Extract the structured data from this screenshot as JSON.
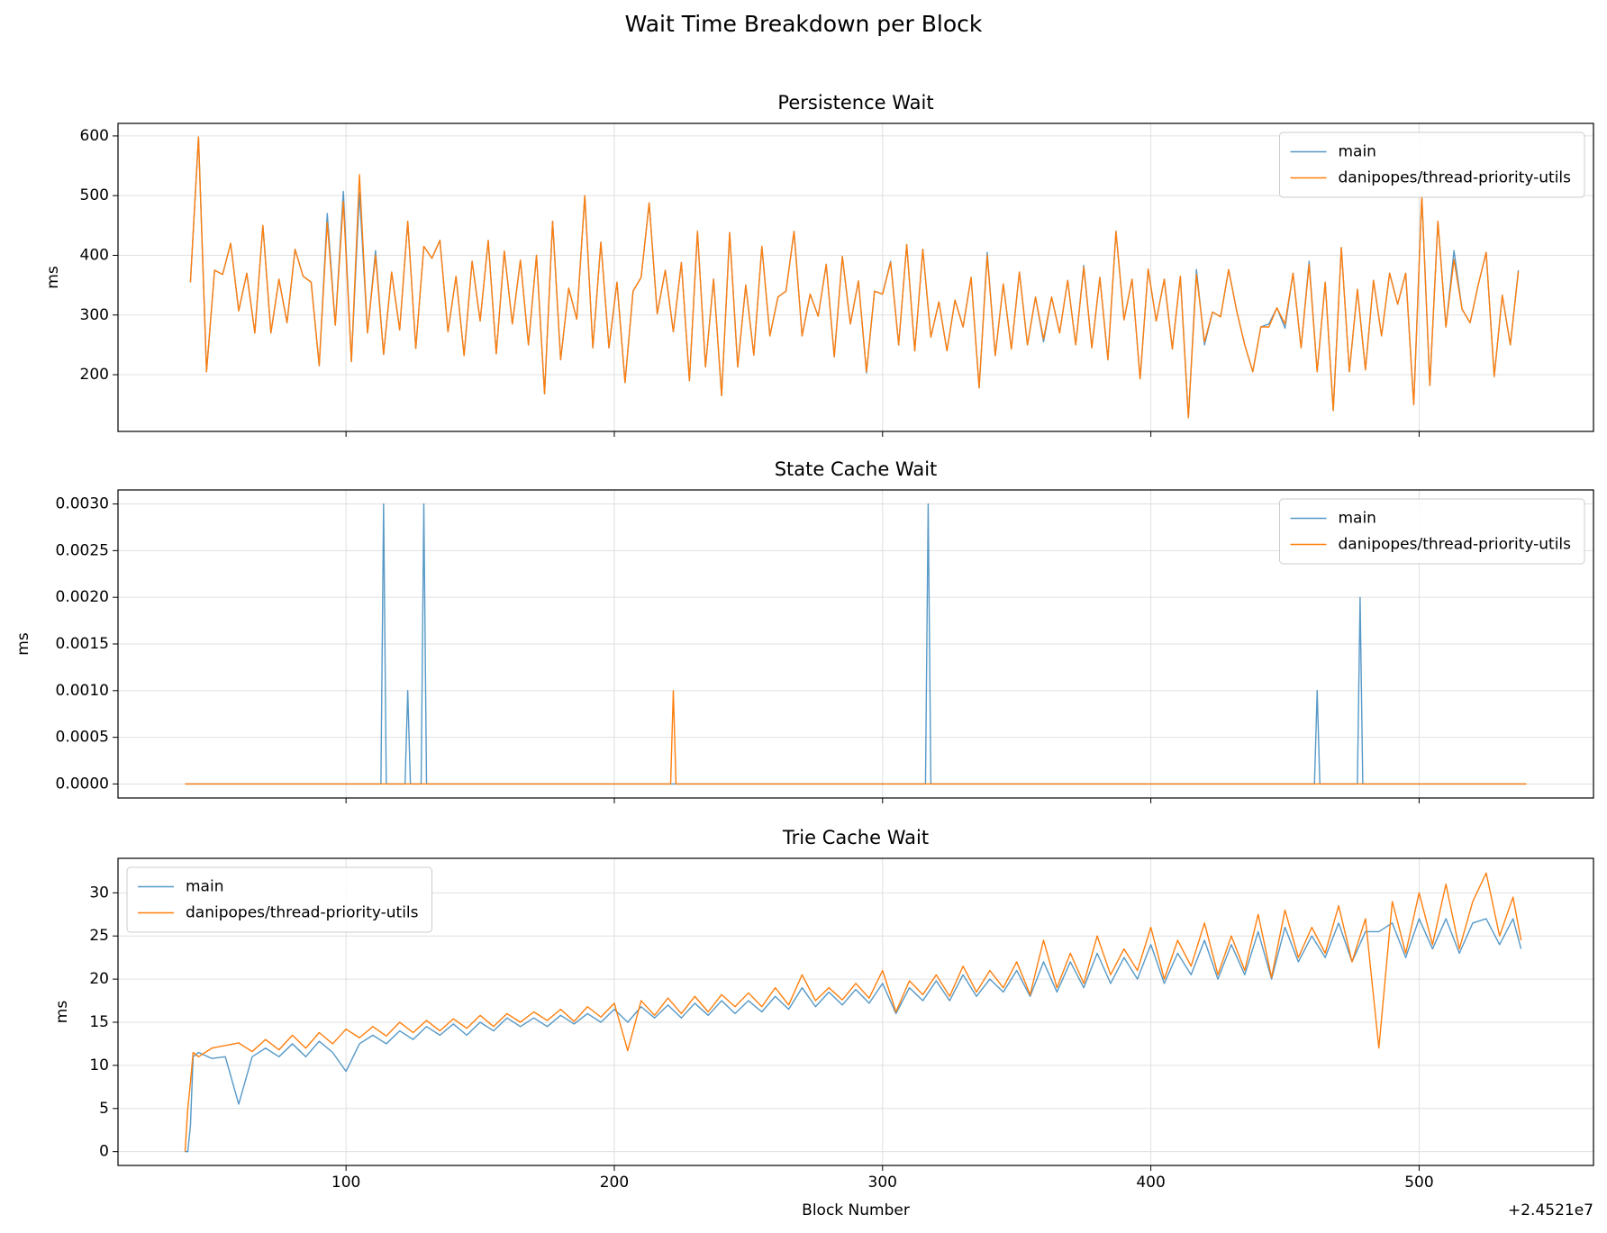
{
  "title": "Wait Time Breakdown per Block",
  "chart_data": [
    {
      "type": "line",
      "title": "Persistence Wait",
      "ylabel": "ms",
      "legend": "upper right",
      "grid": true,
      "show_xtick_labels": false,
      "xlim": [
        15,
        565
      ],
      "xticks": [
        100,
        200,
        300,
        400,
        500
      ],
      "ylim": [
        105,
        621
      ],
      "yticks": [
        200,
        300,
        400,
        500,
        600
      ],
      "x": [
        42,
        45,
        48,
        51,
        54,
        57,
        60,
        63,
        66,
        69,
        72,
        75,
        78,
        81,
        84,
        87,
        90,
        93,
        96,
        99,
        102,
        105,
        108,
        111,
        114,
        117,
        120,
        123,
        126,
        129,
        132,
        135,
        138,
        141,
        144,
        147,
        150,
        153,
        156,
        159,
        162,
        165,
        168,
        171,
        174,
        177,
        180,
        183,
        186,
        189,
        192,
        195,
        198,
        201,
        204,
        207,
        210,
        213,
        216,
        219,
        222,
        225,
        228,
        231,
        234,
        237,
        240,
        243,
        246,
        249,
        252,
        255,
        258,
        261,
        264,
        267,
        270,
        273,
        276,
        279,
        282,
        285,
        288,
        291,
        294,
        297,
        300,
        303,
        306,
        309,
        312,
        315,
        318,
        321,
        324,
        327,
        330,
        333,
        336,
        339,
        342,
        345,
        348,
        351,
        354,
        357,
        360,
        363,
        366,
        369,
        372,
        375,
        378,
        381,
        384,
        387,
        390,
        393,
        396,
        399,
        402,
        405,
        408,
        411,
        414,
        417,
        420,
        423,
        426,
        429,
        432,
        435,
        438,
        441,
        444,
        447,
        450,
        453,
        456,
        459,
        462,
        465,
        468,
        471,
        474,
        477,
        480,
        483,
        486,
        489,
        492,
        495,
        498,
        501,
        504,
        507,
        510,
        513,
        516,
        519,
        522,
        525,
        528,
        531,
        534,
        537
      ],
      "series": [
        {
          "name": "main",
          "color": "#1f77b4",
          "values": [
            355,
            598,
            205,
            375,
            368,
            420,
            307,
            370,
            270,
            450,
            270,
            360,
            287,
            410,
            365,
            355,
            215,
            470,
            283,
            507,
            222,
            505,
            270,
            408,
            234,
            372,
            275,
            457,
            244,
            415,
            395,
            425,
            272,
            365,
            232,
            390,
            290,
            425,
            235,
            407,
            285,
            392,
            250,
            400,
            168,
            457,
            225,
            345,
            293,
            500,
            245,
            422,
            245,
            355,
            187,
            340,
            363,
            488,
            302,
            375,
            272,
            388,
            190,
            440,
            213,
            360,
            165,
            438,
            213,
            350,
            233,
            415,
            265,
            330,
            340,
            440,
            265,
            335,
            298,
            385,
            230,
            398,
            285,
            357,
            203,
            340,
            335,
            390,
            250,
            418,
            240,
            410,
            263,
            322,
            240,
            325,
            280,
            363,
            178,
            405,
            232,
            352,
            243,
            372,
            250,
            330,
            255,
            330,
            270,
            358,
            250,
            383,
            245,
            363,
            225,
            440,
            292,
            360,
            193,
            377,
            290,
            360,
            243,
            365,
            128,
            376,
            250,
            305,
            297,
            376,
            307,
            250,
            205,
            280,
            285,
            312,
            278,
            370,
            245,
            390,
            205,
            355,
            140,
            413,
            205,
            343,
            208,
            358,
            265,
            370,
            318,
            370,
            150,
            500,
            182,
            457,
            280,
            408,
            310,
            287,
            350,
            405,
            197,
            333,
            250,
            375
          ]
        },
        {
          "name": "danipopes/thread-priority-utils",
          "color": "#ff7f0e",
          "values": [
            355,
            598,
            205,
            375,
            368,
            420,
            307,
            370,
            270,
            450,
            270,
            360,
            287,
            410,
            365,
            355,
            215,
            455,
            283,
            490,
            222,
            535,
            270,
            400,
            234,
            372,
            275,
            457,
            244,
            415,
            395,
            425,
            272,
            365,
            232,
            390,
            290,
            425,
            235,
            407,
            285,
            392,
            250,
            400,
            168,
            457,
            225,
            345,
            293,
            500,
            245,
            422,
            245,
            355,
            187,
            340,
            363,
            488,
            302,
            375,
            272,
            388,
            190,
            440,
            213,
            360,
            165,
            438,
            213,
            350,
            233,
            415,
            265,
            330,
            340,
            440,
            265,
            335,
            298,
            385,
            230,
            398,
            285,
            357,
            205,
            340,
            335,
            388,
            250,
            418,
            240,
            410,
            263,
            322,
            240,
            325,
            280,
            363,
            178,
            400,
            232,
            352,
            243,
            372,
            250,
            330,
            260,
            330,
            270,
            358,
            250,
            380,
            245,
            363,
            225,
            440,
            292,
            360,
            193,
            377,
            290,
            360,
            243,
            365,
            128,
            368,
            255,
            305,
            297,
            376,
            307,
            250,
            205,
            280,
            280,
            312,
            285,
            370,
            245,
            385,
            205,
            355,
            140,
            413,
            205,
            343,
            208,
            358,
            265,
            370,
            318,
            370,
            150,
            500,
            182,
            457,
            280,
            393,
            310,
            287,
            350,
            405,
            197,
            333,
            250,
            373
          ]
        }
      ]
    },
    {
      "type": "line",
      "title": "State Cache Wait",
      "ylabel": "ms",
      "legend": "upper right",
      "grid": true,
      "show_xtick_labels": false,
      "xlim": [
        15,
        565
      ],
      "xticks": [
        100,
        200,
        300,
        400,
        500
      ],
      "ylim": [
        -0.00015,
        0.00315
      ],
      "yticks": [
        {
          "value": 0,
          "label": "0.0000"
        },
        {
          "value": 0.0005,
          "label": "0.0005"
        },
        {
          "value": 0.001,
          "label": "0.0010"
        },
        {
          "value": 0.0015,
          "label": "0.0015"
        },
        {
          "value": 0.002,
          "label": "0.0020"
        },
        {
          "value": 0.0025,
          "label": "0.0025"
        },
        {
          "value": 0.003,
          "label": "0.0030"
        }
      ],
      "x": [
        40,
        113,
        114,
        115,
        122,
        123,
        124,
        128,
        129,
        130,
        221,
        222,
        223,
        316,
        317,
        318,
        461,
        462,
        463,
        477,
        478,
        479,
        540
      ],
      "series": [
        {
          "name": "main",
          "color": "#1f77b4",
          "values": [
            0,
            0,
            0.003,
            0,
            0,
            0.001,
            0,
            0,
            0.003,
            0,
            0,
            0,
            0,
            0,
            0.003,
            0,
            0,
            0.001,
            0,
            0,
            0.002,
            0,
            0
          ]
        },
        {
          "name": "danipopes/thread-priority-utils",
          "color": "#ff7f0e",
          "values": [
            0,
            0,
            0,
            0,
            0,
            0,
            0,
            0,
            0,
            0,
            0,
            0.001,
            0,
            0,
            0,
            0,
            0,
            0,
            0,
            0,
            0,
            0,
            0
          ]
        }
      ]
    },
    {
      "type": "line",
      "title": "Trie Cache Wait",
      "ylabel": "ms",
      "xlabel": "Block Number",
      "x_offset_label": "+2.4521e7",
      "legend": "upper left",
      "grid": true,
      "show_xtick_labels": true,
      "xlim": [
        15,
        565
      ],
      "xticks": [
        100,
        200,
        300,
        400,
        500
      ],
      "ylim": [
        -1.6,
        34
      ],
      "yticks": [
        0,
        5,
        10,
        15,
        20,
        25,
        30
      ],
      "x": [
        40,
        41,
        42,
        43,
        45,
        50,
        55,
        60,
        65,
        70,
        75,
        80,
        85,
        90,
        95,
        100,
        105,
        110,
        115,
        120,
        125,
        130,
        135,
        140,
        145,
        150,
        155,
        160,
        165,
        170,
        175,
        180,
        185,
        190,
        195,
        200,
        205,
        210,
        215,
        220,
        225,
        230,
        235,
        240,
        245,
        250,
        255,
        260,
        265,
        270,
        275,
        280,
        285,
        290,
        295,
        300,
        305,
        310,
        315,
        320,
        325,
        330,
        335,
        340,
        345,
        350,
        355,
        360,
        365,
        370,
        375,
        380,
        385,
        390,
        395,
        400,
        405,
        410,
        415,
        420,
        425,
        430,
        435,
        440,
        445,
        450,
        455,
        460,
        465,
        470,
        475,
        480,
        485,
        490,
        495,
        500,
        505,
        510,
        515,
        520,
        525,
        530,
        535,
        538
      ],
      "series": [
        {
          "name": "main",
          "color": "#1f77b4",
          "values": [
            0,
            0,
            3,
            11,
            11.5,
            10.8,
            11,
            5.5,
            11,
            12,
            11,
            12.5,
            11,
            12.8,
            11.5,
            9.3,
            12.5,
            13.5,
            12.5,
            14,
            13,
            14.5,
            13.5,
            14.8,
            13.5,
            15,
            14,
            15.5,
            14.5,
            15.5,
            14.5,
            15.8,
            14.8,
            16,
            15,
            16.5,
            15,
            16.8,
            15.5,
            17,
            15.5,
            17.2,
            15.8,
            17.5,
            16,
            17.5,
            16.2,
            18,
            16.5,
            19,
            16.8,
            18.5,
            17,
            18.8,
            17.2,
            19.5,
            16,
            19,
            17.5,
            19.8,
            17.5,
            20.5,
            18,
            20,
            18.5,
            21,
            18,
            22,
            18.5,
            22,
            19,
            23,
            19.5,
            22.5,
            20,
            24,
            19.5,
            23,
            20.5,
            24.5,
            20,
            24,
            20.5,
            25.5,
            20,
            26,
            22,
            25,
            22.5,
            26.5,
            22,
            25.5,
            25.5,
            26.5,
            22.5,
            27,
            23.5,
            27,
            23,
            26.5,
            27,
            24,
            27,
            23.5
          ]
        },
        {
          "name": "danipopes/thread-priority-utils",
          "color": "#ff7f0e",
          "values": [
            0,
            5,
            8,
            11.5,
            11,
            12,
            12.3,
            12.6,
            11.6,
            13,
            11.8,
            13.5,
            12,
            13.8,
            12.5,
            14.2,
            13.2,
            14.5,
            13.4,
            15,
            13.8,
            15.2,
            14,
            15.4,
            14.3,
            15.8,
            14.5,
            16,
            15,
            16.2,
            15.2,
            16.5,
            15.1,
            16.8,
            15.6,
            17.2,
            11.7,
            17.5,
            15.8,
            17.8,
            16,
            18,
            16.2,
            18.2,
            16.8,
            18.4,
            16.8,
            19,
            17,
            20.5,
            17.5,
            19,
            17.6,
            19.5,
            17.8,
            21,
            16.2,
            19.8,
            18.2,
            20.5,
            18,
            21.5,
            18.5,
            21,
            19,
            22,
            18.2,
            24.5,
            19,
            23,
            19.5,
            25,
            20.5,
            23.5,
            21,
            26,
            20,
            24.5,
            21.5,
            26.5,
            20.5,
            25,
            21,
            27.5,
            20.2,
            28,
            22.5,
            26,
            23,
            28.5,
            22,
            27,
            12,
            29,
            23,
            30,
            24,
            31,
            23.5,
            29,
            32.3,
            25,
            29.5,
            24.5
          ]
        }
      ]
    }
  ]
}
